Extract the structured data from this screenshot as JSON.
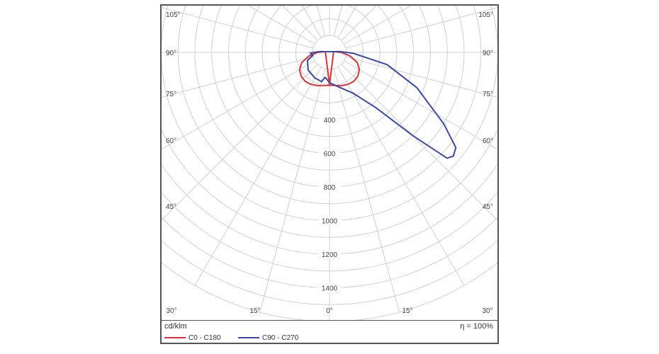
{
  "chart_data": {
    "type": "polar",
    "unit_label": "cd/klm",
    "efficiency_label": "η = 100%",
    "radial_ticks": [
      400,
      600,
      800,
      1000,
      1200,
      1400
    ],
    "radial_tick_labels": [
      "400",
      "600",
      "800",
      "1000",
      "1200",
      "1400"
    ],
    "radial_max": 1600,
    "angle_labels": {
      "left": [
        "105°",
        "90°",
        "75°",
        "60°",
        "45°",
        "30°",
        "15°",
        "0°"
      ],
      "right": [
        "105°",
        "90°",
        "75°",
        "60°",
        "45°",
        "30°",
        "15°"
      ]
    },
    "series": [
      {
        "name": "C0 - C180",
        "color": "#e03030",
        "points": [
          [
            0,
            195
          ],
          [
            10,
            200
          ],
          [
            20,
            210
          ],
          [
            30,
            220
          ],
          [
            40,
            225
          ],
          [
            50,
            220
          ],
          [
            60,
            205
          ],
          [
            70,
            175
          ],
          [
            80,
            125
          ],
          [
            90,
            70
          ],
          [
            100,
            25
          ],
          [
            0,
            195
          ],
          [
            -10,
            200
          ],
          [
            -20,
            210
          ],
          [
            -30,
            220
          ],
          [
            -40,
            225
          ],
          [
            -50,
            220
          ],
          [
            -60,
            205
          ],
          [
            -70,
            175
          ],
          [
            -80,
            125
          ],
          [
            -90,
            70
          ],
          [
            -100,
            25
          ]
        ]
      },
      {
        "name": "C90 - C270",
        "color": "#3848a8",
        "points": [
          [
            -15,
            180
          ],
          [
            -10,
            150
          ],
          [
            0,
            180
          ],
          [
            20,
            230
          ],
          [
            30,
            280
          ],
          [
            40,
            430
          ],
          [
            45,
            700
          ],
          [
            48,
            940
          ],
          [
            50,
            960
          ],
          [
            53,
            940
          ],
          [
            58,
            800
          ],
          [
            68,
            560
          ],
          [
            78,
            350
          ],
          [
            88,
            140
          ],
          [
            95,
            60
          ],
          [
            100,
            25
          ],
          [
            -100,
            25
          ],
          [
            -95,
            60
          ],
          [
            -90,
            90
          ],
          [
            -88,
            115
          ],
          [
            -80,
            100
          ],
          [
            -70,
            140
          ],
          [
            -50,
            165
          ],
          [
            -30,
            175
          ],
          [
            -15,
            180
          ]
        ]
      }
    ]
  }
}
